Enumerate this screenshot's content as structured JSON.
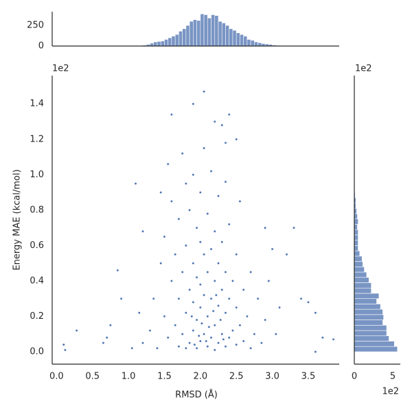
{
  "chart_data": [
    {
      "type": "scatter",
      "xlabel": "RMSD (Å)",
      "ylabel": "Energy MAE (kcal/mol)",
      "y_offset_label": "1e2",
      "color": "#4c72b0",
      "xlim": [
        -0.06,
        3.93
      ],
      "xticks": [
        {
          "value": 0,
          "label": "0.0"
        },
        0.5,
        {
          "value": 1,
          "label": "1.0"
        },
        1.5,
        {
          "value": 2,
          "label": "2.0"
        },
        2.5,
        {
          "value": 3,
          "label": "3.0"
        },
        3.5
      ],
      "ylim": [
        -0.07,
        1.56
      ],
      "yticks": [
        {
          "value": 0,
          "label": "0.0"
        },
        0.2,
        0.4,
        0.6,
        0.8,
        {
          "value": 1,
          "label": "1.0"
        },
        1.2,
        1.4
      ],
      "x": [
        0.1,
        0.12,
        0.28,
        0.65,
        0.7,
        0.75,
        0.85,
        0.9,
        1.1,
        1.2,
        1.45,
        1.55,
        1.6,
        1.9,
        2.05,
        2.2,
        2.3,
        2.4,
        2.5,
        2.35,
        3.3,
        3.4,
        3.5,
        3.6,
        3.7,
        3.6,
        3.85,
        3.0,
        3.2,
        2.9,
        1.2,
        1.3,
        1.35,
        1.4,
        1.45,
        1.5,
        1.5,
        1.55,
        1.6,
        1.6,
        1.65,
        1.65,
        1.7,
        1.7,
        1.7,
        1.75,
        1.75,
        1.75,
        1.8,
        1.8,
        1.8,
        1.8,
        1.85,
        1.85,
        1.85,
        1.9,
        1.9,
        1.9,
        1.9,
        1.95,
        1.95,
        1.95,
        1.95,
        2.0,
        2.0,
        2.0,
        2.0,
        2.0,
        2.05,
        2.05,
        2.05,
        2.05,
        2.1,
        2.1,
        2.1,
        2.1,
        2.15,
        2.15,
        2.15,
        2.15,
        2.2,
        2.2,
        2.2,
        2.2,
        2.25,
        2.25,
        2.25,
        2.25,
        2.3,
        2.3,
        2.3,
        2.35,
        2.35,
        2.35,
        2.35,
        2.4,
        2.4,
        2.4,
        2.45,
        2.45,
        2.5,
        2.5,
        2.5,
        2.55,
        2.55,
        2.6,
        2.6,
        2.65,
        2.7,
        2.7,
        2.75,
        2.8,
        2.85,
        2.9,
        2.95,
        3.05,
        3.1,
        1.05,
        1.15,
        2.12,
        1.98,
        2.08,
        2.28,
        1.88,
        2.18,
        2.02,
        1.92,
        2.22,
        2.32
      ],
      "values": [
        0.04,
        0.01,
        0.12,
        0.05,
        0.08,
        0.15,
        0.46,
        0.3,
        0.95,
        0.68,
        0.9,
        1.06,
        1.34,
        1.4,
        1.47,
        1.3,
        1.28,
        1.34,
        1.2,
        1.18,
        0.7,
        0.3,
        0.28,
        0.22,
        0.08,
        0.0,
        0.07,
        0.58,
        0.55,
        0.7,
        0.05,
        0.12,
        0.3,
        0.02,
        0.5,
        0.2,
        0.65,
        0.08,
        0.4,
        0.85,
        0.15,
        0.55,
        0.03,
        0.3,
        0.75,
        0.1,
        0.45,
        1.12,
        0.02,
        0.22,
        0.6,
        0.95,
        0.05,
        0.35,
        0.8,
        0.12,
        0.28,
        0.5,
        1.0,
        0.02,
        0.18,
        0.42,
        0.7,
        0.06,
        0.25,
        0.38,
        0.62,
        0.9,
        0.1,
        0.32,
        0.55,
        1.15,
        0.03,
        0.2,
        0.45,
        0.78,
        0.08,
        0.3,
        0.58,
        1.02,
        0.01,
        0.15,
        0.4,
        0.68,
        0.05,
        0.26,
        0.5,
        0.88,
        0.1,
        0.35,
        0.62,
        0.03,
        0.22,
        0.45,
        0.96,
        0.08,
        0.3,
        0.72,
        0.12,
        0.4,
        0.04,
        0.25,
        0.55,
        0.15,
        0.85,
        0.06,
        0.35,
        0.2,
        0.02,
        0.45,
        0.1,
        0.3,
        0.05,
        0.18,
        0.4,
        0.1,
        0.25,
        0.02,
        0.22,
        0.14,
        0.09,
        0.06,
        0.18,
        0.2,
        0.23,
        0.16,
        0.04,
        0.32,
        0.07
      ]
    },
    {
      "type": "histogram",
      "orientation": "vertical",
      "color": "#4c72b0",
      "xlim": [
        -0.06,
        3.93
      ],
      "ylim": [
        0,
        417
      ],
      "yticks": [
        0,
        250
      ],
      "bins": [
        1.1,
        1.15,
        1.2,
        1.25,
        1.3,
        1.35,
        1.4,
        1.45,
        1.5,
        1.55,
        1.6,
        1.65,
        1.7,
        1.75,
        1.8,
        1.85,
        1.9,
        1.95,
        2.0,
        2.05,
        2.1,
        2.15,
        2.2,
        2.25,
        2.3,
        2.35,
        2.4,
        2.45,
        2.5,
        2.55,
        2.6,
        2.65,
        2.7,
        2.75,
        2.8,
        2.85,
        2.9,
        2.95,
        3.0,
        3.05,
        3.1,
        3.15,
        3.2,
        3.25,
        3.3
      ],
      "values": [
        2,
        5,
        10,
        20,
        35,
        50,
        55,
        60,
        80,
        100,
        120,
        140,
        180,
        210,
        250,
        300,
        320,
        310,
        390,
        380,
        340,
        380,
        370,
        300,
        280,
        250,
        210,
        190,
        160,
        140,
        120,
        80,
        70,
        50,
        40,
        30,
        25,
        20,
        12,
        8,
        5,
        3,
        2,
        1
      ]
    },
    {
      "type": "histogram",
      "orientation": "horizontal",
      "color": "#4c72b0",
      "x_offset_label": "1e2",
      "y_offset_label": "1e2",
      "xlim": [
        0,
        5.98
      ],
      "xticks": [
        0,
        5
      ],
      "ylim": [
        -0.07,
        1.56
      ],
      "bins": [
        0,
        0.03,
        0.06,
        0.09,
        0.12,
        0.15,
        0.18,
        0.21,
        0.24,
        0.27,
        0.3,
        0.33,
        0.36,
        0.39,
        0.42,
        0.45,
        0.48,
        0.51,
        0.54,
        0.57,
        0.6,
        0.63,
        0.66,
        0.69,
        0.72,
        0.75,
        0.78,
        0.81,
        0.84,
        0.87,
        0.9,
        0.93
      ],
      "values": [
        5.6,
        5.2,
        4.5,
        4.2,
        4.2,
        3.7,
        3.8,
        3.7,
        3.4,
        2.9,
        3.2,
        2.2,
        2.2,
        1.9,
        1.6,
        1.3,
        1.1,
        1.0,
        0.7,
        0.5,
        0.5,
        0.5,
        0.5,
        0.4,
        0.5,
        0.4,
        0.3,
        0.2,
        0.2,
        0.1,
        0.05
      ]
    }
  ]
}
